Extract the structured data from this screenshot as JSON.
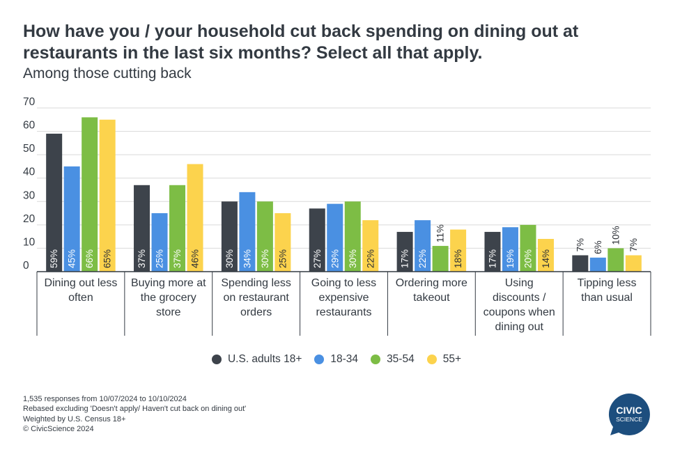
{
  "header": {
    "title": "How have you / your household cut back spending on dining out at restaurants in the last six months? Select all that apply.",
    "subtitle": "Among those cutting back"
  },
  "colors": {
    "series": [
      "#3d434b",
      "#4a90e2",
      "#7dbd45",
      "#fcd34d"
    ],
    "grid": "#d9d9d9",
    "axis": "#333a42"
  },
  "chart_data": {
    "type": "bar",
    "title": "How have you / your household cut back spending on dining out at restaurants in the last six months? Select all that apply.",
    "subtitle": "Among those cutting back",
    "categories": [
      [
        "Dining out less",
        "often"
      ],
      [
        "Buying more at",
        "the grocery",
        "store"
      ],
      [
        "Spending less",
        "on restaurant",
        "orders"
      ],
      [
        "Going to less",
        "expensive",
        "restaurants"
      ],
      [
        "Ordering more",
        "takeout"
      ],
      [
        "Using",
        "discounts /",
        "coupons when",
        "dining out"
      ],
      [
        "Tipping less",
        "than usual"
      ]
    ],
    "series": [
      {
        "name": "U.S. adults 18+",
        "values": [
          59,
          37,
          30,
          27,
          17,
          17,
          7
        ]
      },
      {
        "name": "18-34",
        "values": [
          45,
          25,
          34,
          29,
          22,
          19,
          6
        ]
      },
      {
        "name": "35-54",
        "values": [
          66,
          37,
          30,
          30,
          11,
          20,
          10
        ]
      },
      {
        "name": "55+",
        "values": [
          65,
          46,
          25,
          22,
          18,
          14,
          7
        ]
      }
    ],
    "ylim": [
      0,
      70
    ],
    "yticks": [
      0,
      10,
      20,
      30,
      40,
      50,
      60,
      70
    ],
    "value_suffix": "%",
    "grid": true,
    "legend_position": "bottom"
  },
  "footnotes": [
    "1,535 responses from 10/07/2024 to 10/10/2024",
    "Rebased excluding 'Doesn't apply/ Haven't cut back on dining out'",
    "Weighted by U.S. Census 18+",
    "© CivicScience 2024"
  ],
  "logo": {
    "line1": "CIVIC",
    "line2": "SCIENCE",
    "color": "#1d4e7e"
  }
}
